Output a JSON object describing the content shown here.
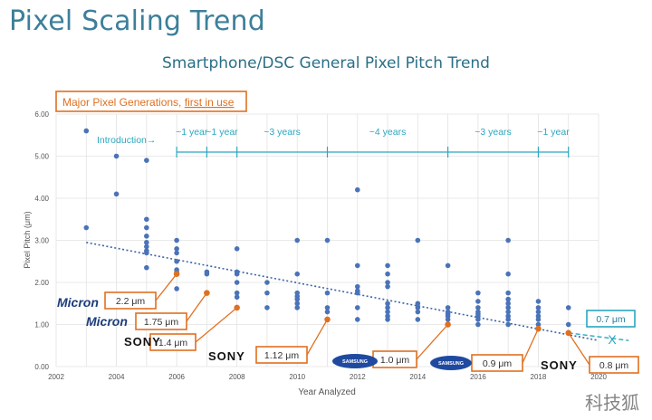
{
  "page": {
    "title": "Pixel Scaling Trend",
    "watermark": "科技狐"
  },
  "colors": {
    "title": "#3d7f9a",
    "points": "#4a73b8",
    "trend": "#3a64a8",
    "orange": "#e07020",
    "annotation": "#2aa7c0",
    "grid": "#e2e2e2"
  },
  "chart_data": {
    "type": "scatter",
    "title": "Smartphone/DSC General Pixel Pitch Trend",
    "xlabel": "Year Analyzed",
    "ylabel": "Pixel Pitch (μm)",
    "xlim": [
      2002,
      2020
    ],
    "ylim": [
      0,
      6
    ],
    "x_ticks": [
      "2002",
      "2004",
      "2006",
      "2008",
      "2010",
      "2012",
      "2014",
      "2016",
      "2018",
      "2020"
    ],
    "y_ticks": [
      "0.00",
      "1.00",
      "2.00",
      "3.00",
      "4.00",
      "5.00",
      "6.00"
    ],
    "grid": true,
    "legend_box": "Major Pixel Generations, first in use",
    "legend_prefix": "Major Pixel Generations, ",
    "legend_underlined": "first in use",
    "points": [
      [
        2003,
        5.6
      ],
      [
        2003,
        3.3
      ],
      [
        2004,
        5.0
      ],
      [
        2004,
        4.1
      ],
      [
        2005,
        4.9
      ],
      [
        2005,
        3.5
      ],
      [
        2005,
        3.3
      ],
      [
        2005,
        3.1
      ],
      [
        2005,
        2.95
      ],
      [
        2005,
        2.85
      ],
      [
        2005,
        2.75
      ],
      [
        2005,
        2.7
      ],
      [
        2005,
        2.35
      ],
      [
        2006,
        3.0
      ],
      [
        2006,
        2.8
      ],
      [
        2006,
        2.7
      ],
      [
        2006,
        2.5
      ],
      [
        2006,
        2.3
      ],
      [
        2006,
        2.25
      ],
      [
        2006,
        2.2
      ],
      [
        2006,
        1.85
      ],
      [
        2007,
        2.25
      ],
      [
        2007,
        2.2
      ],
      [
        2008,
        2.8
      ],
      [
        2008,
        2.25
      ],
      [
        2008,
        2.2
      ],
      [
        2008,
        2.0
      ],
      [
        2008,
        1.75
      ],
      [
        2008,
        1.65
      ],
      [
        2008,
        1.4
      ],
      [
        2009,
        2.0
      ],
      [
        2009,
        1.75
      ],
      [
        2009,
        1.4
      ],
      [
        2010,
        3.0
      ],
      [
        2010,
        2.2
      ],
      [
        2010,
        1.75
      ],
      [
        2010,
        1.67
      ],
      [
        2010,
        1.6
      ],
      [
        2010,
        1.5
      ],
      [
        2010,
        1.4
      ],
      [
        2011,
        3.0
      ],
      [
        2011,
        1.75
      ],
      [
        2011,
        1.4
      ],
      [
        2011,
        1.3
      ],
      [
        2011,
        1.12
      ],
      [
        2012,
        4.2
      ],
      [
        2012,
        2.4
      ],
      [
        2012,
        1.9
      ],
      [
        2012,
        1.8
      ],
      [
        2012,
        1.75
      ],
      [
        2012,
        1.4
      ],
      [
        2012,
        1.12
      ],
      [
        2013,
        2.4
      ],
      [
        2013,
        2.2
      ],
      [
        2013,
        2.0
      ],
      [
        2013,
        1.9
      ],
      [
        2013,
        1.5
      ],
      [
        2013,
        1.4
      ],
      [
        2013,
        1.3
      ],
      [
        2013,
        1.2
      ],
      [
        2013,
        1.12
      ],
      [
        2014,
        3.0
      ],
      [
        2014,
        1.5
      ],
      [
        2014,
        1.4
      ],
      [
        2014,
        1.3
      ],
      [
        2014,
        1.12
      ],
      [
        2015,
        2.4
      ],
      [
        2015,
        1.4
      ],
      [
        2015,
        1.3
      ],
      [
        2015,
        1.25
      ],
      [
        2015,
        1.2
      ],
      [
        2015,
        1.12
      ],
      [
        2015,
        1.0
      ],
      [
        2016,
        1.75
      ],
      [
        2016,
        1.55
      ],
      [
        2016,
        1.4
      ],
      [
        2016,
        1.3
      ],
      [
        2016,
        1.25
      ],
      [
        2016,
        1.2
      ],
      [
        2016,
        1.12
      ],
      [
        2016,
        1.0
      ],
      [
        2017,
        3.0
      ],
      [
        2017,
        2.2
      ],
      [
        2017,
        1.75
      ],
      [
        2017,
        1.6
      ],
      [
        2017,
        1.5
      ],
      [
        2017,
        1.4
      ],
      [
        2017,
        1.3
      ],
      [
        2017,
        1.2
      ],
      [
        2017,
        1.12
      ],
      [
        2017,
        1.0
      ],
      [
        2018,
        1.55
      ],
      [
        2018,
        1.4
      ],
      [
        2018,
        1.3
      ],
      [
        2018,
        1.2
      ],
      [
        2018,
        1.12
      ],
      [
        2018,
        1.0
      ],
      [
        2018,
        0.9
      ],
      [
        2019,
        1.4
      ],
      [
        2019,
        1.0
      ]
    ],
    "trendline": {
      "x0": 2003,
      "y0": 2.95,
      "x1": 2020,
      "y1": 0.62
    },
    "projection": {
      "x0": 2019,
      "y0": 0.8,
      "x1": 2021,
      "y1": 0.62
    },
    "intro_label": "Introduction→",
    "intervals": [
      {
        "x0": 2006,
        "x1": 2007,
        "label": "~1 year"
      },
      {
        "x0": 2007,
        "x1": 2008,
        "label": "~1 year"
      },
      {
        "x0": 2008,
        "x1": 2011,
        "label": "~3 years"
      },
      {
        "x0": 2011,
        "x1": 2015,
        "label": "~4 years"
      },
      {
        "x0": 2015,
        "x1": 2018,
        "label": "~3 years"
      },
      {
        "x0": 2018,
        "x1": 2019,
        "label": "~1 year"
      }
    ],
    "generations": [
      {
        "label": "2.2 μm",
        "year": 2006,
        "value": 2.2,
        "brand": "Micron"
      },
      {
        "label": "1.75 μm",
        "year": 2007,
        "value": 1.75,
        "brand": "Micron"
      },
      {
        "label": "1.4 μm",
        "year": 2008,
        "value": 1.4,
        "brand": "SONY"
      },
      {
        "label": "1.12 μm",
        "year": 2011,
        "value": 1.12,
        "brand": "SONY"
      },
      {
        "label": "1.0 μm",
        "year": 2015,
        "value": 1.0,
        "brand": "SAMSUNG"
      },
      {
        "label": "0.9 μm",
        "year": 2018,
        "value": 0.9,
        "brand": "SAMSUNG"
      },
      {
        "label": "0.8 μm",
        "year": 2019,
        "value": 0.8,
        "brand": "SONY"
      }
    ],
    "future_label": "0.7 μm",
    "future_mark": "X"
  }
}
